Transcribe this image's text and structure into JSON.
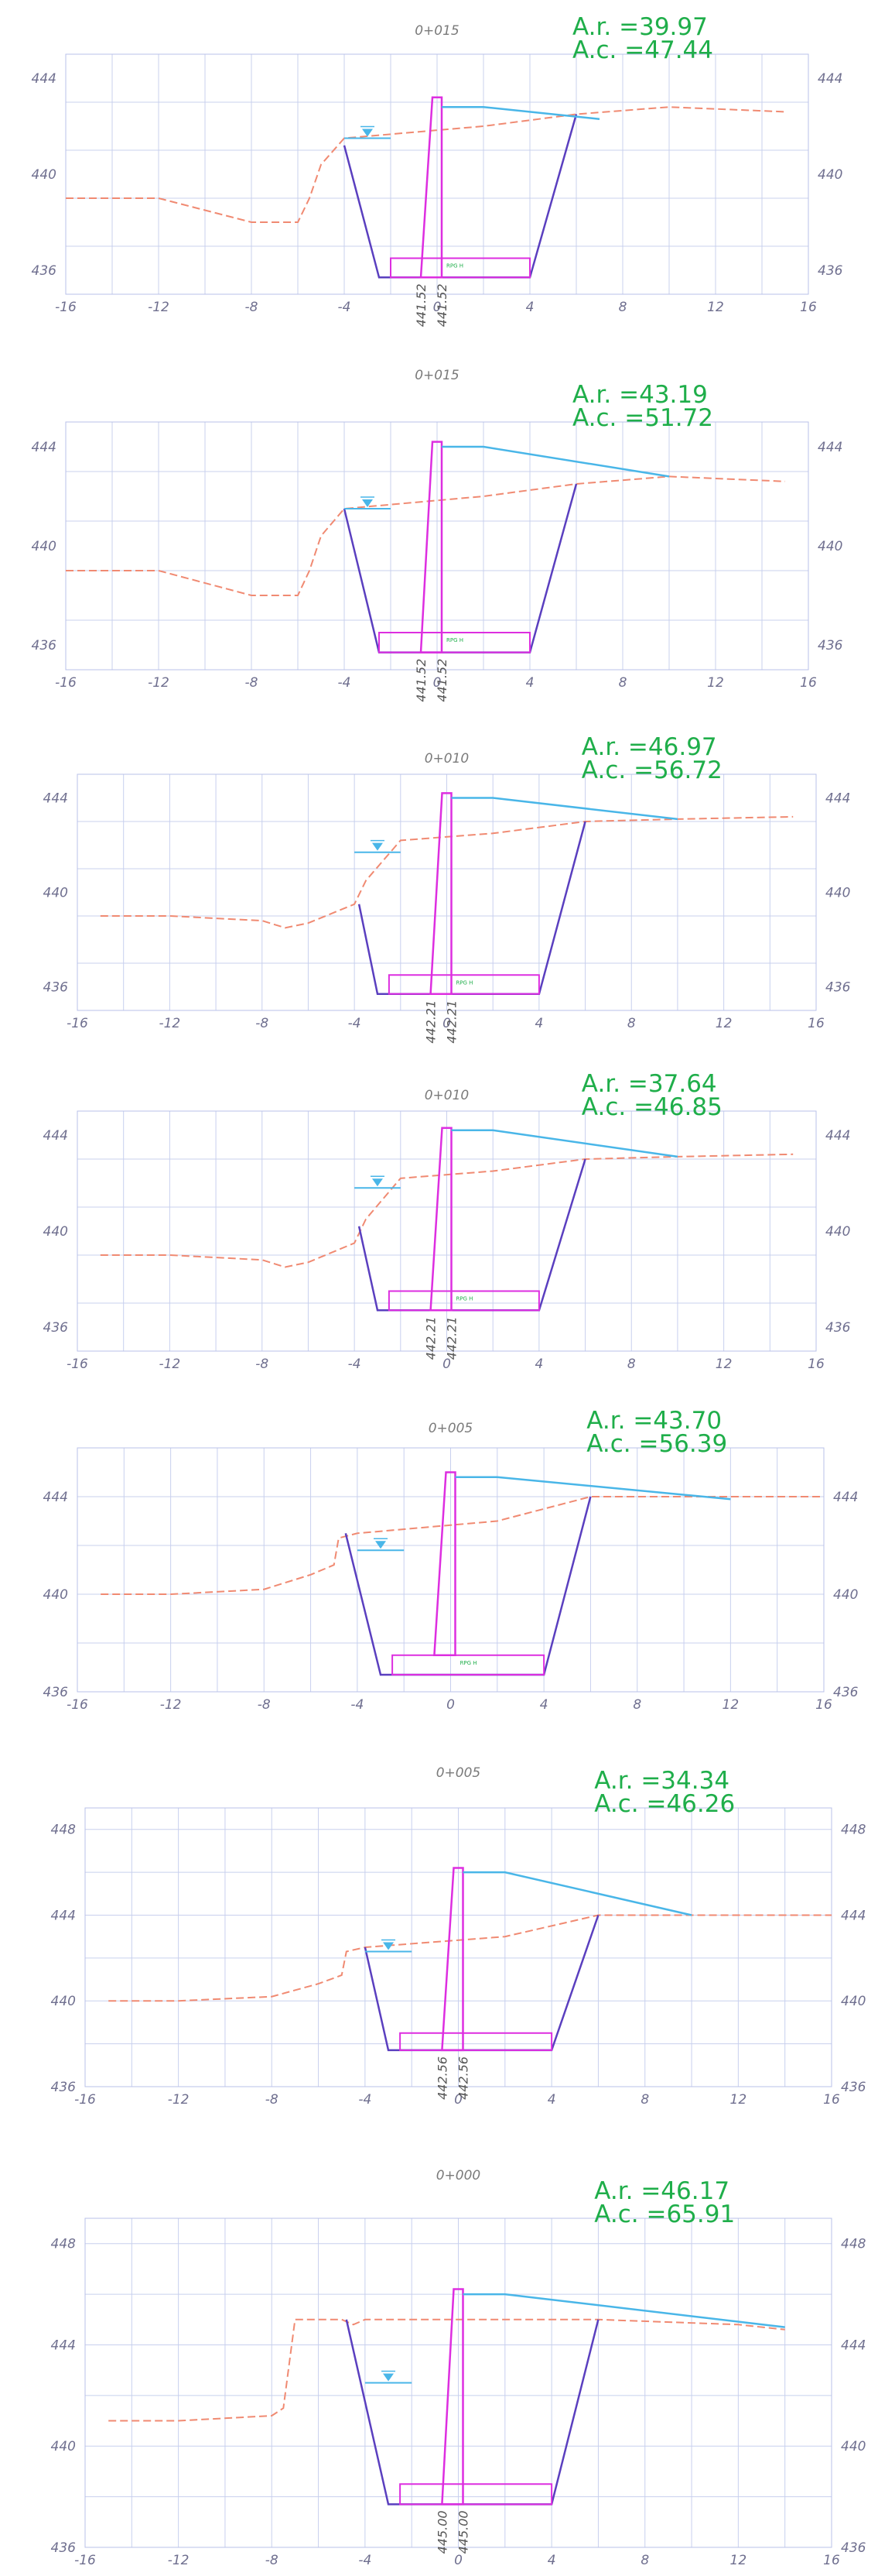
{
  "colors": {
    "grid": "#c8d0ee",
    "axis_text": "#6f6f8f",
    "title_text": "#7a7a7a",
    "ground": "#f08a72",
    "excavation": "#5a3fbf",
    "wall": "#dd2ee0",
    "water": "#49b6e8",
    "area_text": "#1fae4a",
    "label_text": "#555555"
  },
  "sections": [
    {
      "station": "0+015",
      "ar": "A.r. =39.97",
      "ac": "A.c. =47.44",
      "x_ticks": [
        "-16",
        "-12",
        "-8",
        "-4",
        "0",
        "4",
        "8",
        "12",
        "16"
      ],
      "y_ticks": [
        "444",
        "440",
        "436"
      ],
      "level_labels": [
        "441.52",
        "441.52"
      ],
      "inner_label": "RPG H",
      "ground": [
        [
          -16,
          439
        ],
        [
          -12,
          439
        ],
        [
          -8,
          438
        ],
        [
          -6,
          438
        ],
        [
          -5.5,
          439
        ],
        [
          -5,
          440.4
        ],
        [
          -4,
          441.5
        ],
        [
          2,
          442
        ],
        [
          6,
          442.5
        ],
        [
          10,
          442.8
        ],
        [
          15,
          442.6
        ]
      ],
      "excavation": [
        [
          -4,
          441.2
        ],
        [
          -2.5,
          435.7
        ],
        [
          4,
          435.7
        ],
        [
          6,
          442.5
        ]
      ],
      "wall": [
        [
          -0.7,
          435.7
        ],
        [
          -0.2,
          443.2
        ],
        [
          0.2,
          443.2
        ],
        [
          0.2,
          435.7
        ]
      ],
      "base": [
        [
          -2,
          436.5
        ],
        [
          4,
          436.5
        ]
      ],
      "water_level": [
        [
          -4,
          441.5
        ],
        [
          -2,
          441.5
        ]
      ],
      "top_line": [
        [
          0.2,
          442.8
        ],
        [
          2,
          442.8
        ],
        [
          7,
          442.3
        ]
      ],
      "y_range": [
        435,
        445
      ]
    },
    {
      "station": "0+015",
      "ar": "A.r. =43.19",
      "ac": "A.c. =51.72",
      "x_ticks": [
        "-16",
        "-12",
        "-8",
        "-4",
        "0",
        "4",
        "8",
        "12",
        "16"
      ],
      "y_ticks": [
        "444",
        "440",
        "436"
      ],
      "level_labels": [
        "441.52",
        "441.52"
      ],
      "inner_label": "RPG H",
      "ground": [
        [
          -16,
          439
        ],
        [
          -12,
          439
        ],
        [
          -8,
          438
        ],
        [
          -6,
          438
        ],
        [
          -5.5,
          439
        ],
        [
          -5,
          440.4
        ],
        [
          -4,
          441.5
        ],
        [
          2,
          442
        ],
        [
          6,
          442.5
        ],
        [
          10,
          442.8
        ],
        [
          15,
          442.6
        ]
      ],
      "excavation": [
        [
          -4,
          441.5
        ],
        [
          -2.5,
          435.7
        ],
        [
          4,
          435.7
        ],
        [
          6,
          442.5
        ]
      ],
      "wall": [
        [
          -0.7,
          435.7
        ],
        [
          -0.2,
          444.2
        ],
        [
          0.2,
          444.2
        ],
        [
          0.2,
          435.7
        ]
      ],
      "base": [
        [
          -2.5,
          436.5
        ],
        [
          4,
          436.5
        ]
      ],
      "water_level": [
        [
          -4,
          441.5
        ],
        [
          -2,
          441.5
        ]
      ],
      "top_line": [
        [
          0.2,
          444
        ],
        [
          2,
          444
        ],
        [
          10,
          442.8
        ]
      ],
      "y_range": [
        435,
        445
      ]
    },
    {
      "station": "0+010",
      "ar": "A.r. =46.97",
      "ac": "A.c. =56.72",
      "x_ticks": [
        "-16",
        "-12",
        "-8",
        "-4",
        "0",
        "4",
        "8",
        "12",
        "16"
      ],
      "y_ticks": [
        "444",
        "440",
        "436"
      ],
      "level_labels": [
        "442.21",
        "442.21"
      ],
      "inner_label": "RPG H",
      "ground": [
        [
          -15,
          439
        ],
        [
          -12,
          439
        ],
        [
          -8,
          438.8
        ],
        [
          -7,
          438.5
        ],
        [
          -6,
          438.7
        ],
        [
          -4,
          439.5
        ],
        [
          -3.5,
          440.5
        ],
        [
          -2,
          442.2
        ],
        [
          2,
          442.5
        ],
        [
          6,
          443
        ],
        [
          10,
          443.1
        ],
        [
          15,
          443.2
        ]
      ],
      "excavation": [
        [
          -3.8,
          439.5
        ],
        [
          -3,
          435.7
        ],
        [
          4,
          435.7
        ],
        [
          6,
          443
        ]
      ],
      "wall": [
        [
          -0.7,
          435.7
        ],
        [
          -0.2,
          444.2
        ],
        [
          0.2,
          444.2
        ],
        [
          0.2,
          435.7
        ]
      ],
      "base": [
        [
          -2.5,
          436.5
        ],
        [
          4,
          436.5
        ]
      ],
      "water_level": [
        [
          -4,
          441.7
        ],
        [
          -2,
          441.7
        ]
      ],
      "top_line": [
        [
          0.2,
          444
        ],
        [
          2,
          444
        ],
        [
          10,
          443.1
        ]
      ],
      "y_range": [
        435,
        445
      ]
    },
    {
      "station": "0+010",
      "ar": "A.r. =37.64",
      "ac": "A.c. =46.85",
      "x_ticks": [
        "-16",
        "-12",
        "-8",
        "-4",
        "0",
        "4",
        "8",
        "12",
        "16"
      ],
      "y_ticks": [
        "444",
        "440",
        "436"
      ],
      "level_labels": [
        "442.21",
        "442.21"
      ],
      "inner_label": "RPG H",
      "ground": [
        [
          -15,
          439
        ],
        [
          -12,
          439
        ],
        [
          -8,
          438.8
        ],
        [
          -7,
          438.5
        ],
        [
          -6,
          438.7
        ],
        [
          -4,
          439.5
        ],
        [
          -3.5,
          440.5
        ],
        [
          -2,
          442.2
        ],
        [
          2,
          442.5
        ],
        [
          6,
          443
        ],
        [
          10,
          443.1
        ],
        [
          15,
          443.2
        ]
      ],
      "excavation": [
        [
          -3.8,
          440.2
        ],
        [
          -3,
          436.7
        ],
        [
          4,
          436.7
        ],
        [
          6,
          443
        ]
      ],
      "wall": [
        [
          -0.7,
          436.7
        ],
        [
          -0.2,
          444.3
        ],
        [
          0.2,
          444.3
        ],
        [
          0.2,
          436.7
        ]
      ],
      "base": [
        [
          -2.5,
          437.5
        ],
        [
          4,
          437.5
        ]
      ],
      "water_level": [
        [
          -4,
          441.8
        ],
        [
          -2,
          441.8
        ]
      ],
      "top_line": [
        [
          0.2,
          444.2
        ],
        [
          2,
          444.2
        ],
        [
          10,
          443.1
        ]
      ],
      "y_range": [
        435,
        445
      ]
    },
    {
      "station": "0+005",
      "ar": "A.r. =43.70",
      "ac": "A.c. =56.39",
      "x_ticks": [
        "-16",
        "-12",
        "-8",
        "-4",
        "0",
        "4",
        "8",
        "12",
        "16"
      ],
      "y_ticks": [
        "444",
        "440",
        "436"
      ],
      "level_labels": [],
      "inner_label": "RPG H",
      "ground": [
        [
          -15,
          440
        ],
        [
          -12,
          440
        ],
        [
          -8,
          440.2
        ],
        [
          -6,
          440.8
        ],
        [
          -5,
          441.2
        ],
        [
          -4.8,
          442.3
        ],
        [
          -4,
          442.5
        ],
        [
          2,
          443
        ],
        [
          6,
          444
        ],
        [
          10,
          444
        ],
        [
          16,
          444
        ]
      ],
      "excavation": [
        [
          -4.5,
          442.5
        ],
        [
          -3,
          436.7
        ],
        [
          4,
          436.7
        ],
        [
          6,
          444
        ]
      ],
      "wall": [
        [
          -0.7,
          437.5
        ],
        [
          -0.2,
          445
        ],
        [
          0.2,
          445
        ],
        [
          0.2,
          437.5
        ]
      ],
      "base": [
        [
          -2.5,
          437.5
        ],
        [
          4,
          437.5
        ]
      ],
      "water_level": [
        [
          -4,
          441.8
        ],
        [
          -2,
          441.8
        ]
      ],
      "top_line": [
        [
          0.2,
          444.8
        ],
        [
          2,
          444.8
        ],
        [
          12,
          443.9
        ]
      ],
      "y_range": [
        436,
        446
      ]
    },
    {
      "station": "0+005",
      "ar": "A.r. =34.34",
      "ac": "A.c. =46.26",
      "x_ticks": [
        "-16",
        "-12",
        "-8",
        "-4",
        "0",
        "4",
        "8",
        "12",
        "16"
      ],
      "y_ticks": [
        "448",
        "444",
        "440",
        "436"
      ],
      "level_labels": [
        "442.56",
        "442.56"
      ],
      "inner_label": "",
      "ground": [
        [
          -15,
          440
        ],
        [
          -12,
          440
        ],
        [
          -8,
          440.2
        ],
        [
          -6,
          440.8
        ],
        [
          -5,
          441.2
        ],
        [
          -4.8,
          442.3
        ],
        [
          -4,
          442.5
        ],
        [
          2,
          443
        ],
        [
          6,
          444
        ],
        [
          10,
          444
        ],
        [
          16,
          444
        ]
      ],
      "excavation": [
        [
          -4,
          442.5
        ],
        [
          -3,
          437.7
        ],
        [
          4,
          437.7
        ],
        [
          6,
          444
        ]
      ],
      "wall": [
        [
          -0.7,
          437.7
        ],
        [
          -0.2,
          446.2
        ],
        [
          0.2,
          446.2
        ],
        [
          0.2,
          437.7
        ]
      ],
      "base": [
        [
          -2.5,
          438.5
        ],
        [
          4,
          438.5
        ]
      ],
      "water_level": [
        [
          -4,
          442.3
        ],
        [
          -2,
          442.3
        ]
      ],
      "top_line": [
        [
          0.2,
          446
        ],
        [
          2,
          446
        ],
        [
          10,
          444
        ]
      ],
      "y_range": [
        436,
        449
      ]
    },
    {
      "station": "0+000",
      "ar": "A.r. =46.17",
      "ac": "A.c. =65.91",
      "x_ticks": [
        "-16",
        "-12",
        "-8",
        "-4",
        "0",
        "4",
        "8",
        "12",
        "16"
      ],
      "y_ticks": [
        "448",
        "444",
        "440",
        "436"
      ],
      "level_labels": [
        "445.00",
        "445.00"
      ],
      "inner_label": "",
      "ground": [
        [
          -15,
          441
        ],
        [
          -12,
          441
        ],
        [
          -8,
          441.2
        ],
        [
          -7.5,
          441.5
        ],
        [
          -7,
          445
        ],
        [
          -5,
          445
        ],
        [
          -4.5,
          444.8
        ],
        [
          -4,
          445
        ],
        [
          0,
          445
        ],
        [
          6,
          445
        ],
        [
          12,
          444.8
        ],
        [
          14,
          444.6
        ]
      ],
      "excavation": [
        [
          -4.8,
          445
        ],
        [
          -3,
          437.7
        ],
        [
          4,
          437.7
        ],
        [
          6,
          445
        ]
      ],
      "wall": [
        [
          -0.7,
          437.7
        ],
        [
          -0.2,
          446.2
        ],
        [
          0.2,
          446.2
        ],
        [
          0.2,
          437.7
        ]
      ],
      "base": [
        [
          -2.5,
          438.5
        ],
        [
          4,
          438.5
        ]
      ],
      "water_level": [
        [
          -4,
          442.5
        ],
        [
          -2,
          442.5
        ]
      ],
      "top_line": [
        [
          0.2,
          446
        ],
        [
          2,
          446
        ],
        [
          14,
          444.7
        ]
      ],
      "y_range": [
        436,
        449
      ]
    }
  ]
}
